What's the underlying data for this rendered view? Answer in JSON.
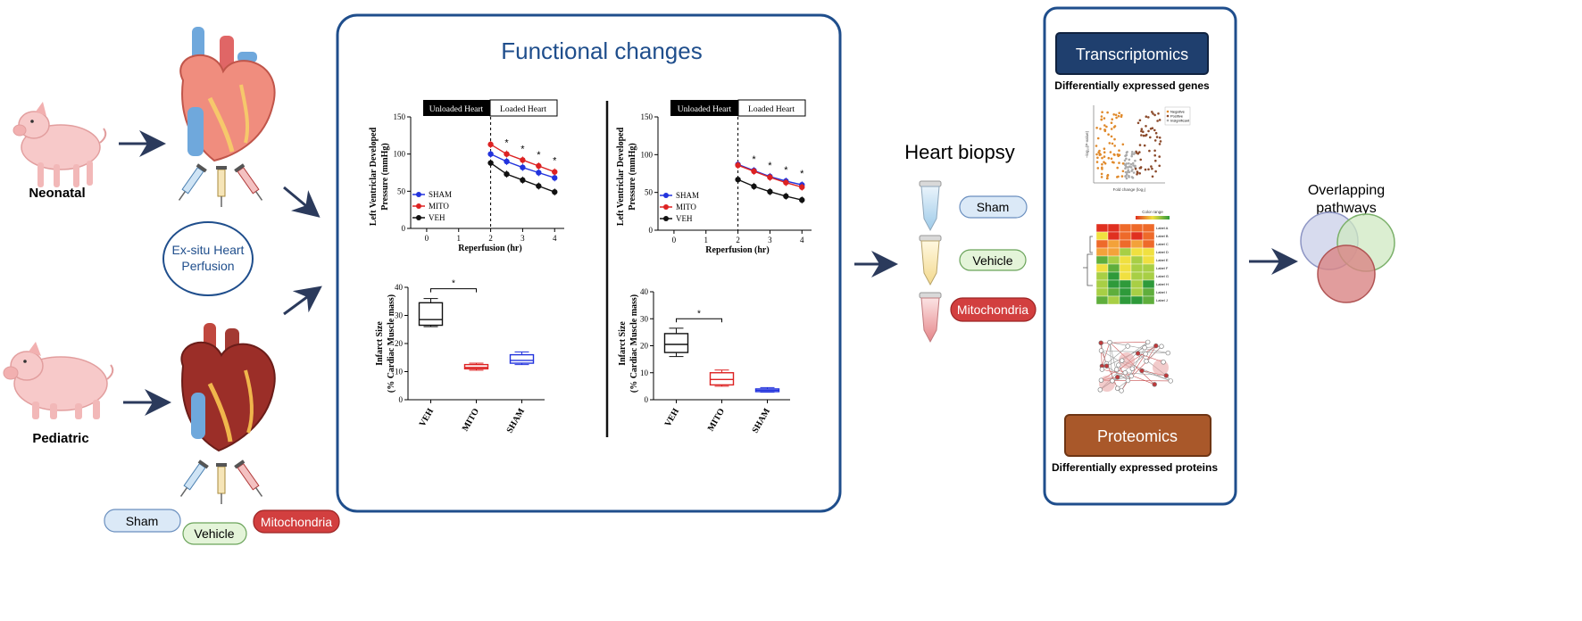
{
  "left": {
    "neonatal_label": "Neonatal",
    "pediatric_label": "Pediatric",
    "perfusion_label_line1": "Ex-situ Heart",
    "perfusion_label_line2": "Perfusion",
    "treatments": [
      "Sham",
      "Vehicle",
      "Mitochondria"
    ]
  },
  "functional": {
    "title": "Functional changes",
    "banner_unloaded": "Unloaded Heart",
    "banner_loaded": "Loaded Heart",
    "legend": [
      "SHAM",
      "MITO",
      "VEH"
    ],
    "lvdp_ylabel_line1": "Left Ventriclar Developed",
    "lvdp_ylabel_line2": "Pressure (mmHg)",
    "lvdp_xlabel": "Reperfusion (hr)",
    "infarct_ylabel_line1": "Infarct Size",
    "infarct_ylabel_line2": "(% Cardiac Muscle mass)",
    "significance": "*"
  },
  "biopsy": {
    "title": "Heart biopsy",
    "groups": [
      "Sham",
      "Vehicle",
      "Mitochondria"
    ]
  },
  "omics": {
    "transcriptomics_title": "Transcriptomics",
    "transcriptomics_caption": "Differentially expressed genes",
    "proteomics_title": "Proteomics",
    "proteomics_caption": "Differentially expressed proteins",
    "volcano_legend": [
      "Negative",
      "Positive",
      "Insignificant"
    ],
    "volcano_xlabel": "Fold change (log₂)",
    "volcano_ylabel": "−log₁₀(P-value)",
    "heatmap_scale_label": "Color range",
    "heatmap_rows": [
      "Label A",
      "Label B",
      "Label C",
      "Label D",
      "Label E",
      "Label F",
      "Label G",
      "Label H",
      "Label I",
      "Label J"
    ]
  },
  "overlap": {
    "title_line1": "Overlapping",
    "title_line2": "pathways"
  },
  "colors": {
    "frame_blue": "#1f4e8c",
    "title_blue": "#1f4e8c",
    "sham": "#2233dd",
    "mito": "#dd2222",
    "veh": "#111111",
    "sham_pill": "#dbe9f7",
    "vehicle_pill": "#e4f4d9",
    "mito_pill": "#d23f3f",
    "transcriptomics_box": "#1f3f6e",
    "proteomics_box": "#a9582a"
  },
  "chart_data": [
    {
      "type": "line",
      "panel": "neonatal",
      "title": "",
      "xlabel": "Reperfusion (hr)",
      "ylabel": "Left Ventriclar Developed Pressure (mmHg)",
      "xlim": [
        -0.5,
        4.3
      ],
      "ylim": [
        0,
        150
      ],
      "xticks": [
        0,
        1,
        2,
        3,
        4
      ],
      "yticks": [
        0,
        50,
        100,
        150
      ],
      "x": [
        2,
        2.5,
        3,
        3.5,
        4
      ],
      "series": [
        {
          "name": "SHAM",
          "values": [
            100,
            90,
            82,
            75,
            68
          ]
        },
        {
          "name": "MITO",
          "values": [
            113,
            100,
            92,
            84,
            76
          ]
        },
        {
          "name": "VEH",
          "values": [
            88,
            73,
            65,
            57,
            49
          ]
        }
      ],
      "significant_x": [
        2.5,
        3,
        3.5,
        4
      ]
    },
    {
      "type": "line",
      "panel": "pediatric",
      "title": "",
      "xlabel": "Reperfusion (hr)",
      "ylabel": "Left Ventriclar Developed Pressure (mmHg)",
      "xlim": [
        -0.5,
        4.3
      ],
      "ylim": [
        0,
        150
      ],
      "xticks": [
        0,
        1,
        2,
        3,
        4
      ],
      "yticks": [
        0,
        50,
        100,
        150
      ],
      "x": [
        2,
        2.5,
        3,
        3.5,
        4
      ],
      "series": [
        {
          "name": "SHAM",
          "values": [
            87,
            79,
            71,
            65,
            60
          ]
        },
        {
          "name": "MITO",
          "values": [
            86,
            78,
            70,
            63,
            57
          ]
        },
        {
          "name": "VEH",
          "values": [
            67,
            58,
            51,
            45,
            40
          ]
        }
      ],
      "significant_x": [
        2.5,
        3,
        3.5,
        4
      ]
    },
    {
      "type": "box",
      "panel": "neonatal",
      "ylabel": "Infarct Size (% Cardiac Muscle mass)",
      "ylim": [
        0,
        40
      ],
      "yticks": [
        0,
        10,
        20,
        30,
        40
      ],
      "categories": [
        "VEH",
        "MITO",
        "SHAM"
      ],
      "boxes": [
        {
          "name": "VEH",
          "min": 26,
          "q1": 26.5,
          "median": 28.5,
          "q3": 34.5,
          "max": 36
        },
        {
          "name": "MITO",
          "min": 10.5,
          "q1": 11,
          "median": 11.5,
          "q3": 12.5,
          "max": 13
        },
        {
          "name": "SHAM",
          "min": 12.5,
          "q1": 13,
          "median": 14,
          "q3": 16,
          "max": 17
        }
      ]
    },
    {
      "type": "box",
      "panel": "pediatric",
      "ylabel": "Infarct Size (% Cardiac Muscle mass)",
      "ylim": [
        0,
        40
      ],
      "yticks": [
        0,
        10,
        20,
        30,
        40
      ],
      "categories": [
        "VEH",
        "MITO",
        "SHAM"
      ],
      "boxes": [
        {
          "name": "VEH",
          "min": 16,
          "q1": 17.5,
          "median": 20.5,
          "q3": 24.5,
          "max": 26.5
        },
        {
          "name": "MITO",
          "min": 5,
          "q1": 5.5,
          "median": 7.5,
          "q3": 10,
          "max": 11
        },
        {
          "name": "SHAM",
          "min": 2.8,
          "q1": 3,
          "median": 3.5,
          "q3": 4,
          "max": 4.5
        }
      ]
    }
  ]
}
